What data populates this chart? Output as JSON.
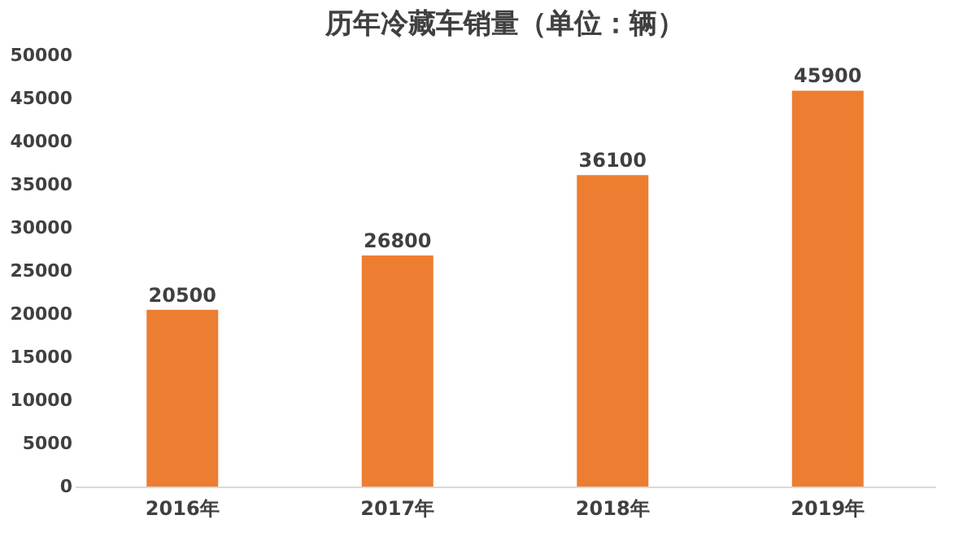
{
  "chart_data": {
    "type": "bar",
    "title": "历年冷藏车销量（单位：辆）",
    "categories": [
      "2016年",
      "2017年",
      "2018年",
      "2019年"
    ],
    "values": [
      20500,
      26800,
      36100,
      45900
    ],
    "color": "#ed7d31",
    "ylim": [
      0,
      50000
    ],
    "yticks": [
      0,
      5000,
      10000,
      15000,
      20000,
      25000,
      30000,
      35000,
      40000,
      45000,
      50000
    ],
    "data_labels": true,
    "grid": false
  }
}
